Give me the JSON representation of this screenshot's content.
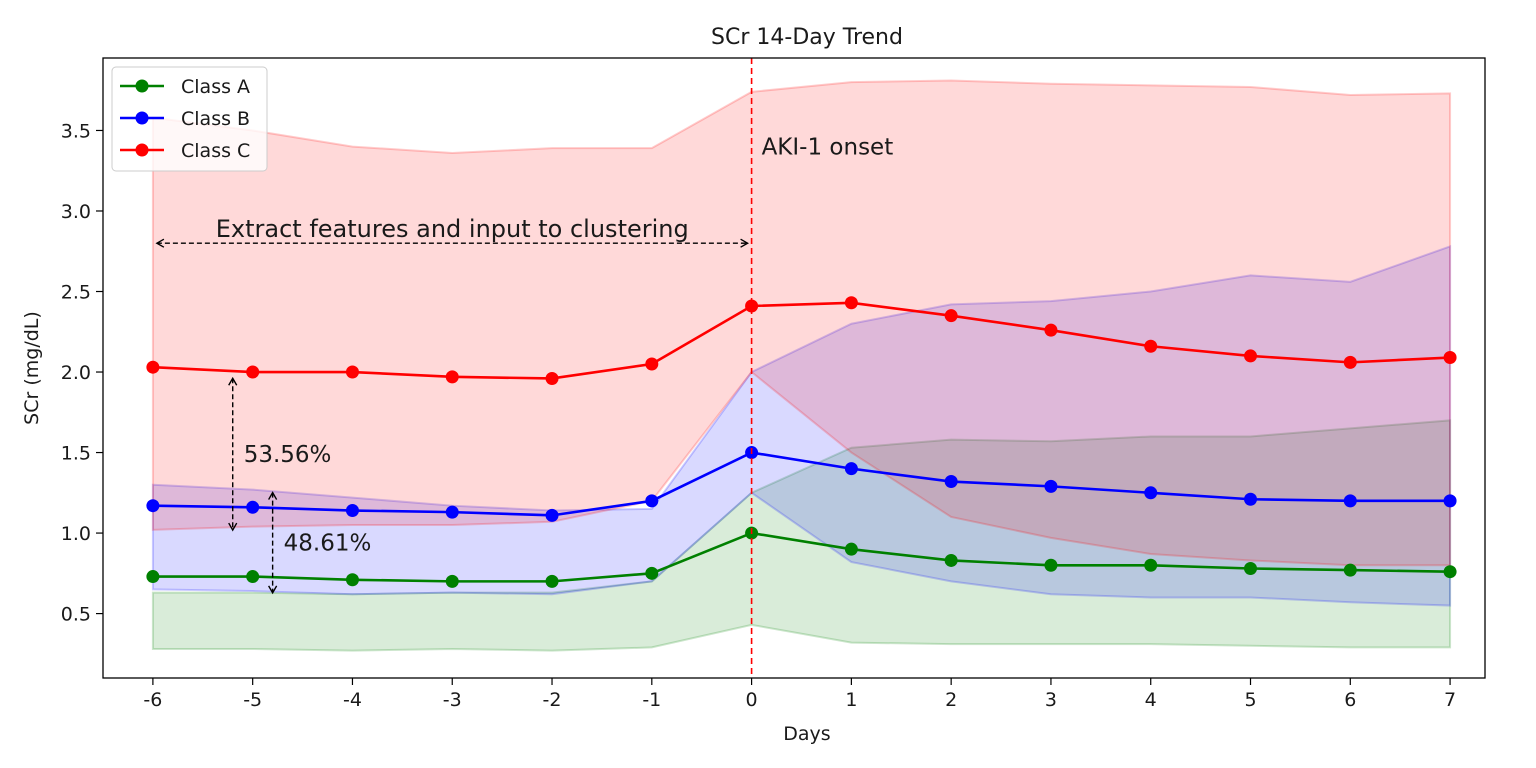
{
  "chart_data": {
    "type": "line",
    "title": "SCr 14-Day Trend",
    "xlabel": "Days",
    "ylabel": "SCr (mg/dL)",
    "x": [
      -6,
      -5,
      -4,
      -3,
      -2,
      -1,
      0,
      1,
      2,
      3,
      4,
      5,
      6,
      7
    ],
    "xticks": [
      "-6",
      "-5",
      "-4",
      "-3",
      "-2",
      "-1",
      "0",
      "1",
      "2",
      "3",
      "4",
      "5",
      "6",
      "7"
    ],
    "yticks": [
      "0.5",
      "1.0",
      "1.5",
      "2.0",
      "2.5",
      "3.0",
      "3.5"
    ],
    "ytick_values": [
      0.5,
      1.0,
      1.5,
      2.0,
      2.5,
      3.0,
      3.5
    ],
    "xlim": [
      -6.5,
      7.35
    ],
    "ylim": [
      0.1,
      3.95
    ],
    "grid": false,
    "legend_position": "top-left",
    "series": [
      {
        "name": "Class A",
        "color": "#008000",
        "values": [
          0.73,
          0.73,
          0.71,
          0.7,
          0.7,
          0.75,
          1.0,
          0.9,
          0.83,
          0.8,
          0.8,
          0.78,
          0.77,
          0.76
        ],
        "band_lower": [
          0.28,
          0.28,
          0.27,
          0.28,
          0.27,
          0.29,
          0.43,
          0.32,
          0.31,
          0.31,
          0.31,
          0.3,
          0.29,
          0.29
        ],
        "band_upper": [
          0.63,
          0.63,
          0.62,
          0.63,
          0.63,
          0.7,
          1.25,
          1.53,
          1.58,
          1.57,
          1.6,
          1.6,
          1.65,
          1.7
        ]
      },
      {
        "name": "Class B",
        "color": "#0000ff",
        "values": [
          1.17,
          1.16,
          1.14,
          1.13,
          1.11,
          1.2,
          1.5,
          1.4,
          1.32,
          1.29,
          1.25,
          1.21,
          1.2,
          1.2
        ],
        "band_lower": [
          0.65,
          0.64,
          0.62,
          0.63,
          0.62,
          0.7,
          1.25,
          0.82,
          0.7,
          0.62,
          0.6,
          0.6,
          0.57,
          0.55
        ],
        "band_upper": [
          1.3,
          1.27,
          1.22,
          1.17,
          1.14,
          1.15,
          2.0,
          2.3,
          2.42,
          2.44,
          2.5,
          2.6,
          2.56,
          2.78
        ]
      },
      {
        "name": "Class C",
        "color": "#ff0000",
        "values": [
          2.03,
          2.0,
          2.0,
          1.97,
          1.96,
          2.05,
          2.41,
          2.43,
          2.35,
          2.26,
          2.16,
          2.1,
          2.06,
          2.09
        ],
        "band_lower": [
          1.02,
          1.04,
          1.05,
          1.05,
          1.07,
          1.2,
          2.0,
          1.5,
          1.1,
          0.97,
          0.87,
          0.83,
          0.8,
          0.8
        ],
        "band_upper": [
          3.58,
          3.5,
          3.4,
          3.36,
          3.39,
          3.39,
          3.74,
          3.8,
          3.81,
          3.79,
          3.78,
          3.77,
          3.72,
          3.73
        ]
      }
    ],
    "annotations": {
      "onset_x": 0,
      "onset_label": "AKI-1 onset",
      "extract_label": "Extract features and input to clustering",
      "extract_arrow": {
        "x_from": -6,
        "x_to": 0,
        "y": 2.8
      },
      "pct1": {
        "label": "53.56%",
        "x": -5.2,
        "y_from": 1.0,
        "y_to": 1.98
      },
      "pct2": {
        "label": "48.61%",
        "x": -4.8,
        "y_from": 0.61,
        "y_to": 1.27
      }
    }
  }
}
